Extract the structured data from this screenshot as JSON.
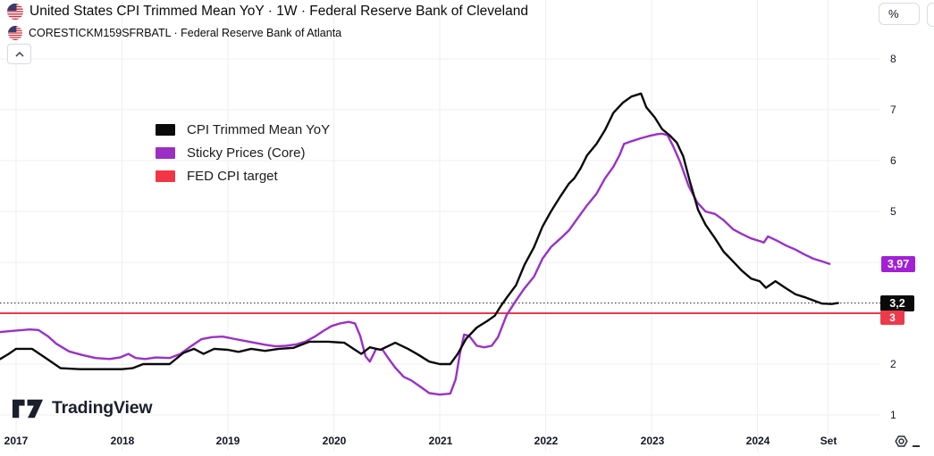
{
  "header": {
    "title_main": "United States CPI Trimmed Mean YoY · 1W · Federal Reserve Bank of Cleveland",
    "title_secondary": "CORESTICKM159SFRBATL · Federal Reserve Bank of Atlanta",
    "collapse_icon": "chevron-up"
  },
  "legend": {
    "items": [
      {
        "label": "CPI Trimmed Mean YoY",
        "color": "#0a0a0a"
      },
      {
        "label": "Sticky Prices (Core)",
        "color": "#9B2FC4"
      },
      {
        "label": "FED CPI target",
        "color": "#F23645"
      }
    ]
  },
  "footer": {
    "logo_text": "TradingView",
    "settings_icon": "gear"
  },
  "icons": {
    "flag": "us-flag",
    "collapse": "chevron-up",
    "settings": "gear-nut"
  },
  "style": {
    "background": "#FFFFFF",
    "grid_color": "#EFEFF2",
    "text_color": "#131722",
    "accent_black": "#0A0A0A",
    "accent_purple": "#9B30C8",
    "accent_purple_badge": "#A21FD6",
    "accent_red": "#ED3A4B"
  },
  "chart_data": {
    "type": "line",
    "title": "United States CPI Trimmed Mean YoY vs Sticky Prices (Core)",
    "unit": "%",
    "x_axis": {
      "ticks": [
        {
          "label": "2017",
          "year": 2017
        },
        {
          "label": "2018",
          "year": 2018
        },
        {
          "label": "2019",
          "year": 2019
        },
        {
          "label": "2020",
          "year": 2020
        },
        {
          "label": "2021",
          "year": 2021
        },
        {
          "label": "2022",
          "year": 2022
        },
        {
          "label": "2023",
          "year": 2023
        },
        {
          "label": "2024",
          "year": 2024
        },
        {
          "label": "Set",
          "year": 2024.665
        }
      ],
      "range_years": [
        2016.85,
        2025.08
      ]
    },
    "y_axis": {
      "unit_label": "%",
      "ticks": [
        8,
        7,
        6,
        5,
        4,
        3,
        2,
        1
      ],
      "tick_labels": [
        "8",
        "7",
        "6",
        "5",
        "4",
        "3",
        "2",
        "1"
      ],
      "range": [
        0.7,
        8.2
      ],
      "grid": true
    },
    "reference_lines": [
      {
        "name": "FED CPI target",
        "value": 3.0,
        "label": "3",
        "color": "#ED3A4B",
        "style": "solid"
      },
      {
        "name": "last-value-dotted-line",
        "value": 3.2,
        "color": "#3c3c44",
        "style": "dotted"
      }
    ],
    "series": [
      {
        "name": "CPI Trimmed Mean YoY",
        "source": "Federal Reserve Bank of Cleveland",
        "color": "#0A0A0A",
        "last_value_label": "3,2",
        "last_value": 3.2,
        "points": [
          [
            2016.85,
            2.1
          ],
          [
            2016.93,
            2.2
          ],
          [
            2017.0,
            2.3
          ],
          [
            2017.15,
            2.3
          ],
          [
            2017.28,
            2.12
          ],
          [
            2017.42,
            1.92
          ],
          [
            2017.6,
            1.9
          ],
          [
            2017.8,
            1.9
          ],
          [
            2018.0,
            1.9
          ],
          [
            2018.1,
            1.92
          ],
          [
            2018.2,
            2.0
          ],
          [
            2018.45,
            2.0
          ],
          [
            2018.58,
            2.22
          ],
          [
            2018.68,
            2.3
          ],
          [
            2018.77,
            2.2
          ],
          [
            2018.87,
            2.3
          ],
          [
            2019.0,
            2.28
          ],
          [
            2019.1,
            2.24
          ],
          [
            2019.22,
            2.3
          ],
          [
            2019.35,
            2.26
          ],
          [
            2019.48,
            2.3
          ],
          [
            2019.62,
            2.32
          ],
          [
            2019.77,
            2.44
          ],
          [
            2019.95,
            2.44
          ],
          [
            2020.1,
            2.42
          ],
          [
            2020.2,
            2.28
          ],
          [
            2020.26,
            2.2
          ],
          [
            2020.34,
            2.33
          ],
          [
            2020.44,
            2.28
          ],
          [
            2020.58,
            2.42
          ],
          [
            2020.7,
            2.3
          ],
          [
            2020.8,
            2.18
          ],
          [
            2020.9,
            2.05
          ],
          [
            2021.0,
            2.0
          ],
          [
            2021.1,
            2.0
          ],
          [
            2021.17,
            2.2
          ],
          [
            2021.25,
            2.5
          ],
          [
            2021.35,
            2.72
          ],
          [
            2021.45,
            2.85
          ],
          [
            2021.52,
            2.95
          ],
          [
            2021.58,
            3.15
          ],
          [
            2021.63,
            3.3
          ],
          [
            2021.72,
            3.55
          ],
          [
            2021.8,
            3.95
          ],
          [
            2021.89,
            4.3
          ],
          [
            2021.97,
            4.7
          ],
          [
            2022.05,
            5.0
          ],
          [
            2022.14,
            5.3
          ],
          [
            2022.22,
            5.55
          ],
          [
            2022.27,
            5.65
          ],
          [
            2022.33,
            5.85
          ],
          [
            2022.39,
            6.1
          ],
          [
            2022.48,
            6.33
          ],
          [
            2022.56,
            6.6
          ],
          [
            2022.64,
            6.94
          ],
          [
            2022.73,
            7.14
          ],
          [
            2022.81,
            7.26
          ],
          [
            2022.9,
            7.32
          ],
          [
            2022.95,
            7.05
          ],
          [
            2023.03,
            6.85
          ],
          [
            2023.1,
            6.62
          ],
          [
            2023.17,
            6.5
          ],
          [
            2023.24,
            6.35
          ],
          [
            2023.3,
            6.08
          ],
          [
            2023.36,
            5.6
          ],
          [
            2023.44,
            5.03
          ],
          [
            2023.51,
            4.74
          ],
          [
            2023.6,
            4.47
          ],
          [
            2023.68,
            4.21
          ],
          [
            2023.77,
            4.02
          ],
          [
            2023.85,
            3.84
          ],
          [
            2023.94,
            3.68
          ],
          [
            2024.02,
            3.63
          ],
          [
            2024.08,
            3.5
          ],
          [
            2024.17,
            3.63
          ],
          [
            2024.27,
            3.49
          ],
          [
            2024.36,
            3.37
          ],
          [
            2024.44,
            3.32
          ],
          [
            2024.53,
            3.25
          ],
          [
            2024.61,
            3.19
          ],
          [
            2024.7,
            3.18
          ],
          [
            2024.76,
            3.2
          ]
        ]
      },
      {
        "name": "Sticky Prices (Core)",
        "source": "Federal Reserve Bank of Atlanta",
        "color": "#9B30C8",
        "last_value_label": "3,97",
        "last_value": 3.97,
        "points": [
          [
            2016.85,
            2.63
          ],
          [
            2017.0,
            2.66
          ],
          [
            2017.13,
            2.68
          ],
          [
            2017.21,
            2.67
          ],
          [
            2017.3,
            2.55
          ],
          [
            2017.38,
            2.4
          ],
          [
            2017.5,
            2.25
          ],
          [
            2017.62,
            2.18
          ],
          [
            2017.75,
            2.12
          ],
          [
            2017.88,
            2.1
          ],
          [
            2017.98,
            2.13
          ],
          [
            2018.06,
            2.2
          ],
          [
            2018.13,
            2.12
          ],
          [
            2018.22,
            2.1
          ],
          [
            2018.32,
            2.13
          ],
          [
            2018.45,
            2.12
          ],
          [
            2018.55,
            2.2
          ],
          [
            2018.65,
            2.35
          ],
          [
            2018.75,
            2.49
          ],
          [
            2018.85,
            2.53
          ],
          [
            2018.95,
            2.54
          ],
          [
            2019.05,
            2.5
          ],
          [
            2019.15,
            2.46
          ],
          [
            2019.25,
            2.42
          ],
          [
            2019.35,
            2.38
          ],
          [
            2019.45,
            2.35
          ],
          [
            2019.55,
            2.36
          ],
          [
            2019.65,
            2.39
          ],
          [
            2019.73,
            2.44
          ],
          [
            2019.82,
            2.54
          ],
          [
            2019.9,
            2.65
          ],
          [
            2019.98,
            2.75
          ],
          [
            2020.06,
            2.8
          ],
          [
            2020.14,
            2.83
          ],
          [
            2020.2,
            2.8
          ],
          [
            2020.25,
            2.55
          ],
          [
            2020.3,
            2.15
          ],
          [
            2020.34,
            2.05
          ],
          [
            2020.4,
            2.3
          ],
          [
            2020.46,
            2.28
          ],
          [
            2020.52,
            2.1
          ],
          [
            2020.58,
            1.93
          ],
          [
            2020.66,
            1.75
          ],
          [
            2020.73,
            1.68
          ],
          [
            2020.82,
            1.55
          ],
          [
            2020.9,
            1.43
          ],
          [
            2021.0,
            1.4
          ],
          [
            2021.1,
            1.42
          ],
          [
            2021.15,
            1.7
          ],
          [
            2021.19,
            2.2
          ],
          [
            2021.23,
            2.58
          ],
          [
            2021.28,
            2.55
          ],
          [
            2021.35,
            2.36
          ],
          [
            2021.42,
            2.33
          ],
          [
            2021.49,
            2.36
          ],
          [
            2021.55,
            2.53
          ],
          [
            2021.63,
            2.96
          ],
          [
            2021.72,
            3.25
          ],
          [
            2021.8,
            3.49
          ],
          [
            2021.89,
            3.72
          ],
          [
            2021.97,
            4.07
          ],
          [
            2022.05,
            4.3
          ],
          [
            2022.14,
            4.47
          ],
          [
            2022.22,
            4.63
          ],
          [
            2022.31,
            4.89
          ],
          [
            2022.39,
            5.12
          ],
          [
            2022.48,
            5.35
          ],
          [
            2022.56,
            5.65
          ],
          [
            2022.64,
            5.88
          ],
          [
            2022.7,
            6.12
          ],
          [
            2022.74,
            6.33
          ],
          [
            2022.81,
            6.38
          ],
          [
            2022.9,
            6.44
          ],
          [
            2022.97,
            6.48
          ],
          [
            2023.05,
            6.52
          ],
          [
            2023.1,
            6.53
          ],
          [
            2023.15,
            6.5
          ],
          [
            2023.2,
            6.3
          ],
          [
            2023.27,
            5.97
          ],
          [
            2023.35,
            5.5
          ],
          [
            2023.43,
            5.18
          ],
          [
            2023.51,
            5.0
          ],
          [
            2023.6,
            4.95
          ],
          [
            2023.68,
            4.83
          ],
          [
            2023.77,
            4.65
          ],
          [
            2023.85,
            4.56
          ],
          [
            2023.94,
            4.47
          ],
          [
            2024.02,
            4.42
          ],
          [
            2024.06,
            4.39
          ],
          [
            2024.1,
            4.51
          ],
          [
            2024.19,
            4.42
          ],
          [
            2024.27,
            4.33
          ],
          [
            2024.36,
            4.25
          ],
          [
            2024.44,
            4.16
          ],
          [
            2024.53,
            4.07
          ],
          [
            2024.61,
            4.02
          ],
          [
            2024.68,
            3.97
          ]
        ]
      }
    ],
    "legend_position": "top-left"
  }
}
